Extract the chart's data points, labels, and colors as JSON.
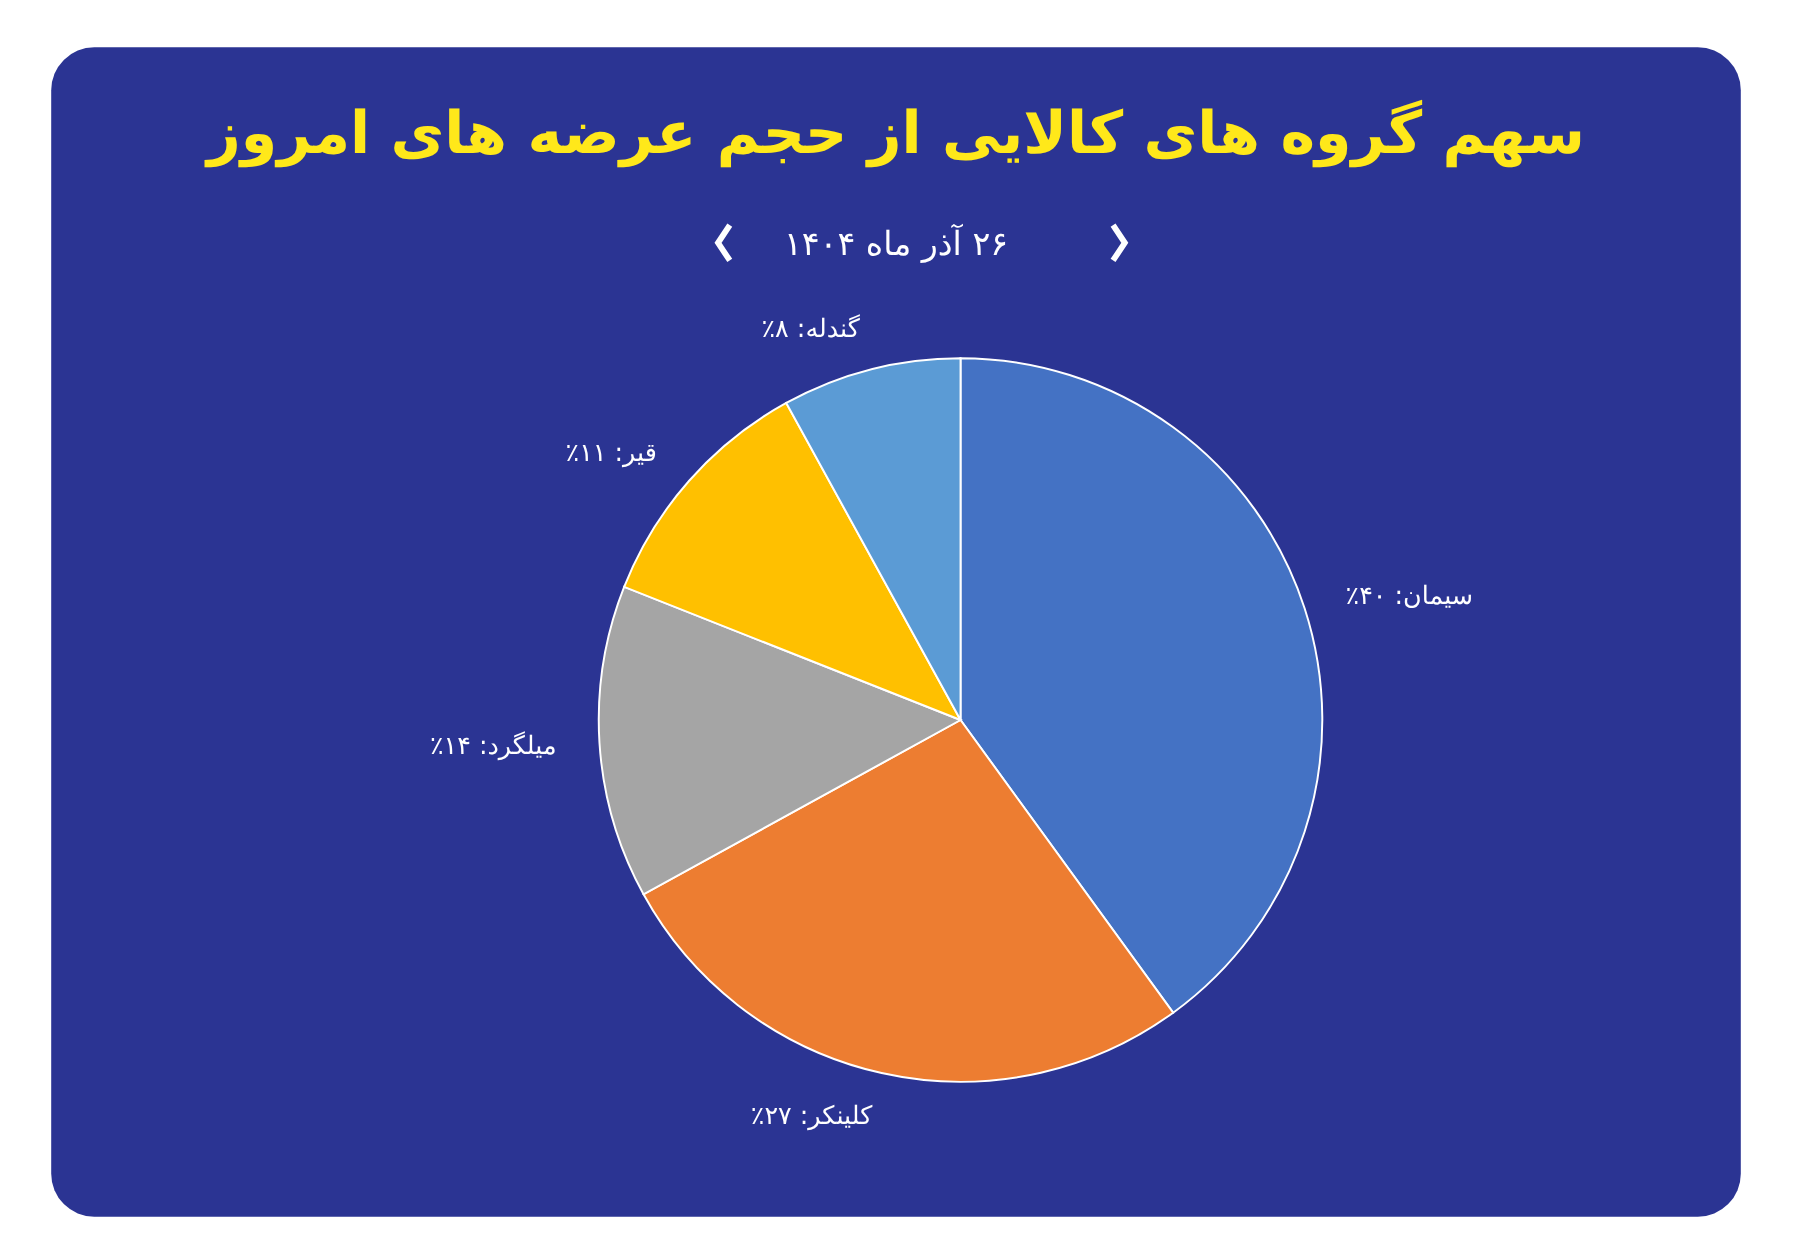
{
  "chart_data": {
    "type": "pie",
    "title": "سهم گروه های کالایی از حجم عرضه های امروز",
    "subtitle": "۲۶ آذر ماه ۱۴۰۴",
    "categories": [
      "سیمان",
      "کلینکر",
      "میلگرد",
      "قیر",
      "گندله"
    ],
    "values": [
      40,
      27,
      14,
      11,
      8
    ],
    "colors": [
      "#4472c4",
      "#ed7d31",
      "#a5a5a5",
      "#ffc000",
      "#5b9bd5"
    ],
    "value_labels": [
      "۴۰٪",
      "۲۷٪",
      "۱۴٪",
      "۱۱٪",
      "۸٪"
    ]
  }
}
